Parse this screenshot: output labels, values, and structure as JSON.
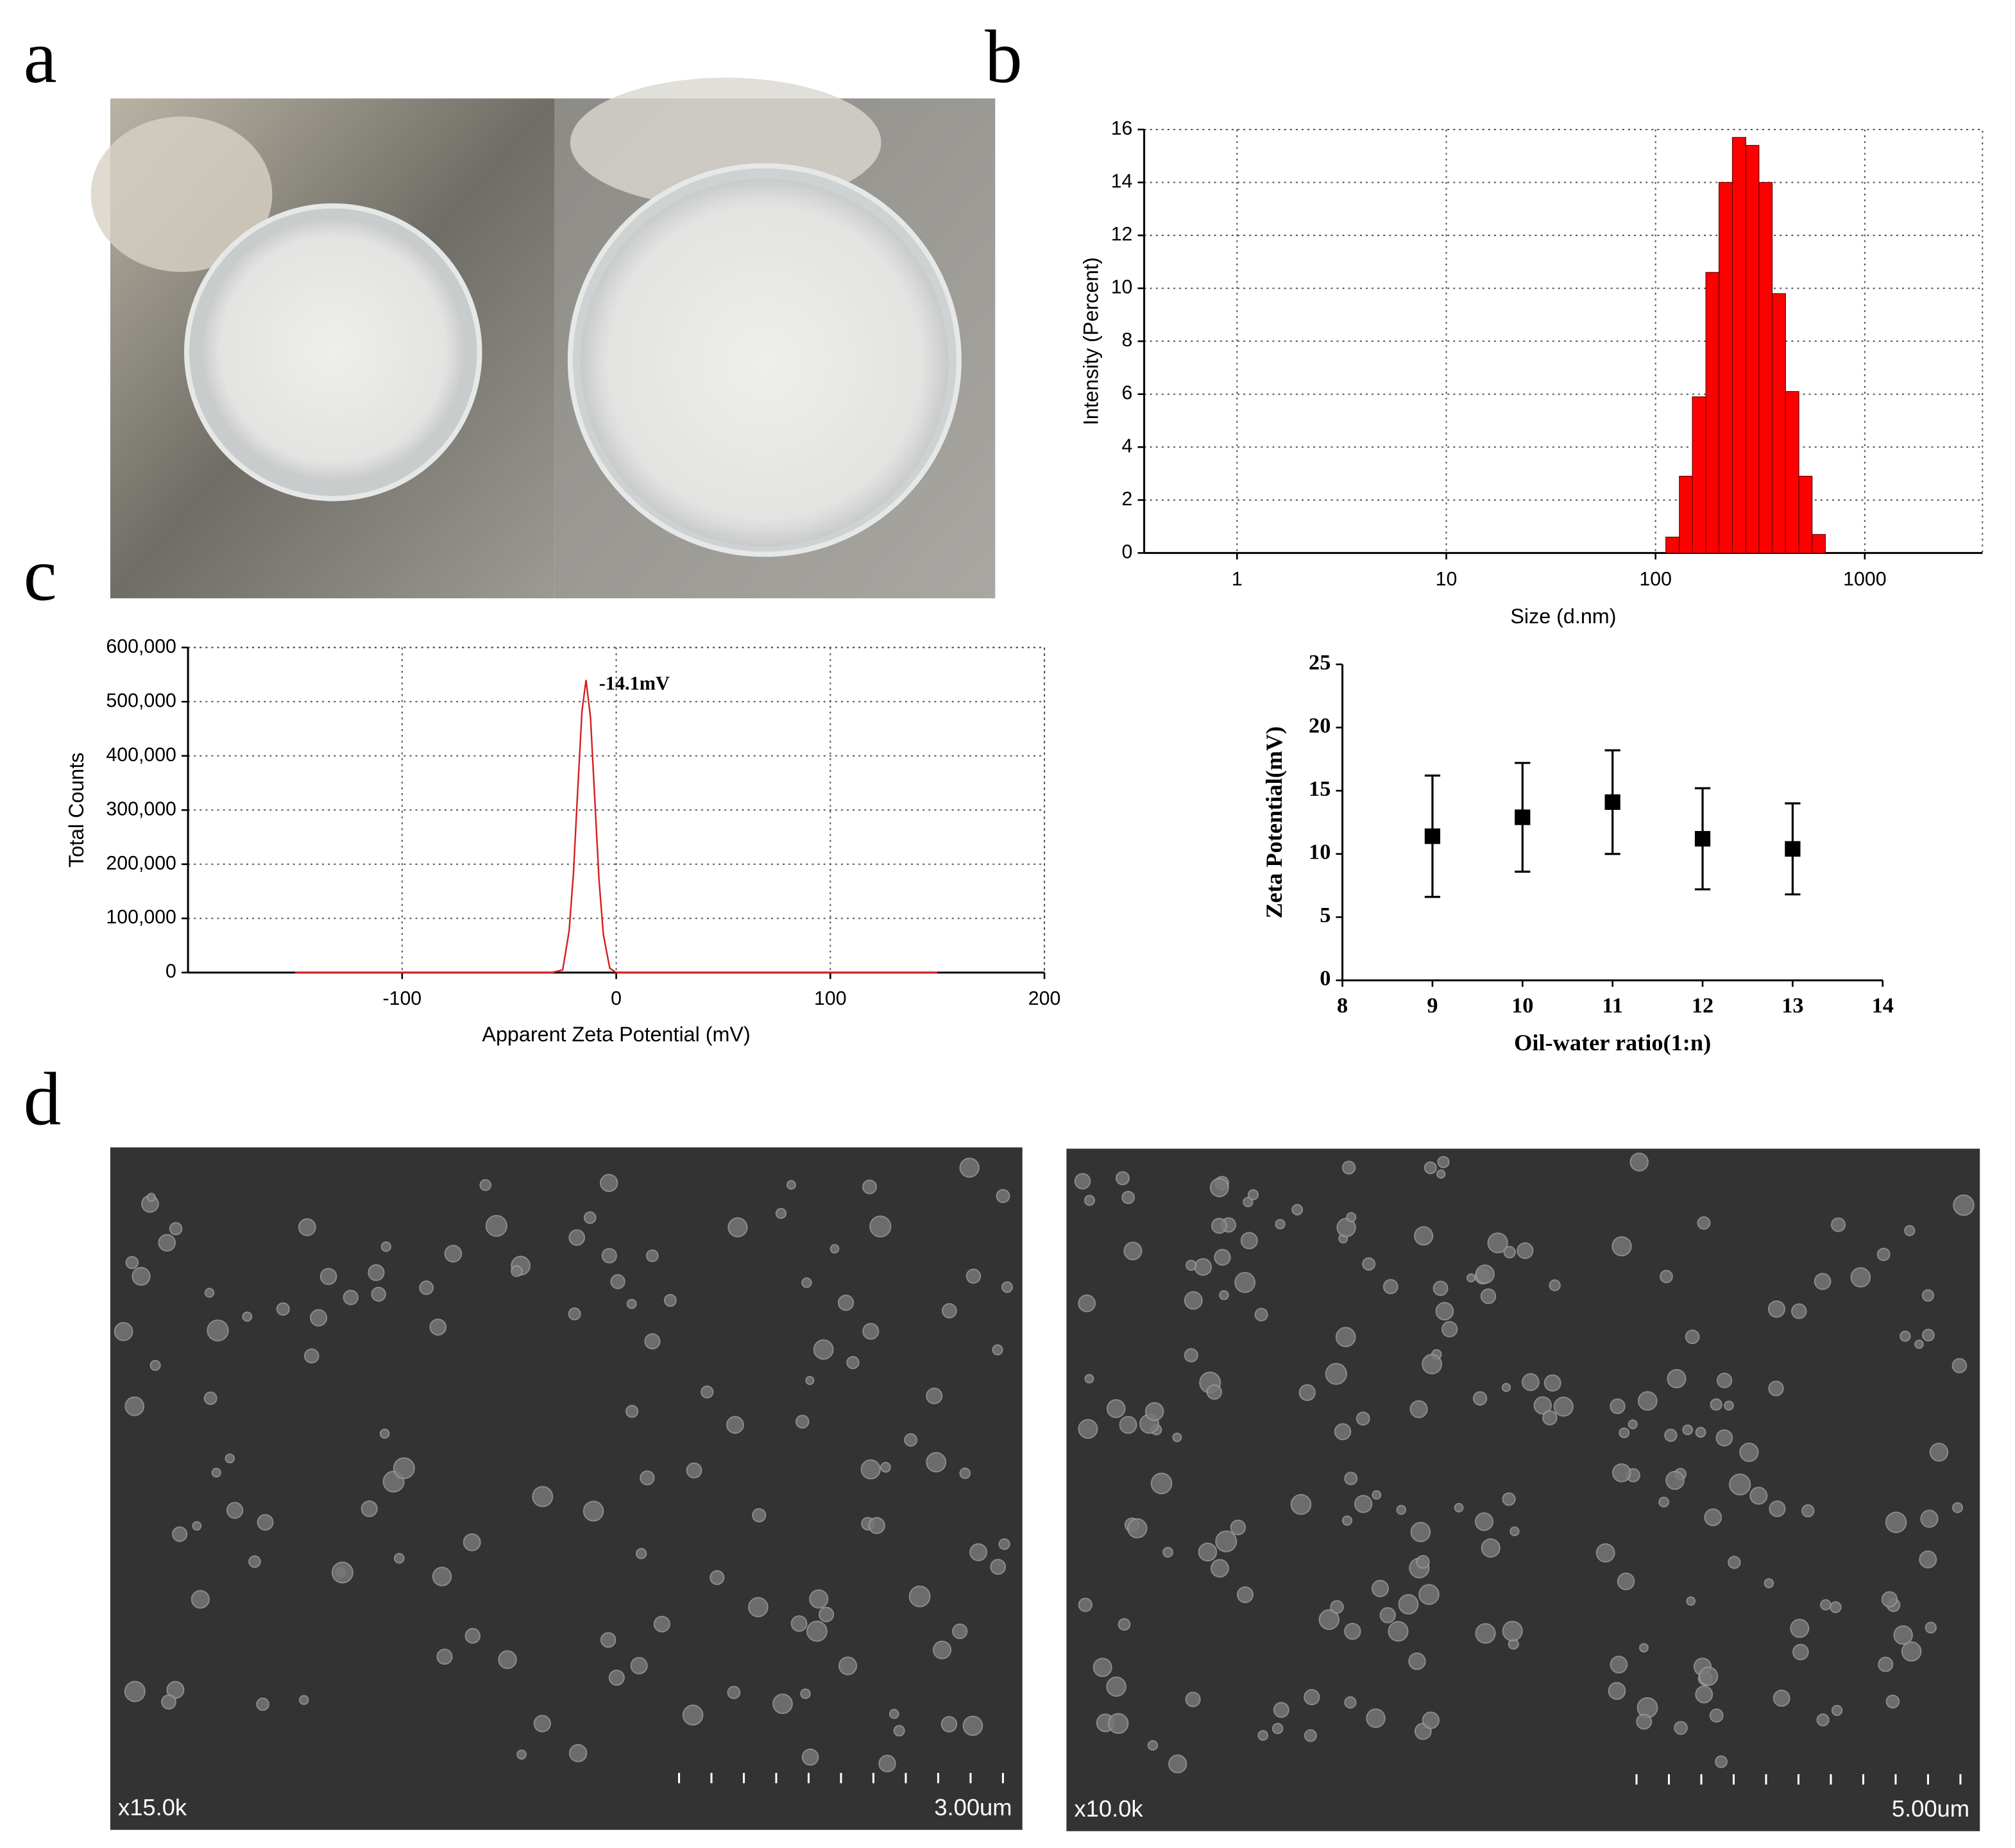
{
  "panels": [
    "a",
    "b",
    "c",
    "d"
  ],
  "chart_data": [
    {
      "type": "histogram",
      "bins": [
        112,
        130,
        150,
        174,
        201,
        233,
        270,
        312,
        361,
        418,
        484,
        560,
        648
      ],
      "values": [
        0.6,
        2.9,
        5.9,
        10.6,
        14.0,
        15.7,
        15.4,
        14.0,
        9.8,
        6.1,
        2.9,
        0.7
      ],
      "color": "#ff0000",
      "x_label": "Size (d.nm)",
      "y_label": "Intensity (Percent)",
      "xlim": [
        0.36,
        3650
      ],
      "xticks": [
        1,
        10,
        100,
        1000
      ],
      "x_log": true,
      "ylim": [
        0,
        16
      ],
      "yticks": [
        0,
        2,
        4,
        6,
        8,
        10,
        12,
        14,
        16
      ],
      "grid": true
    },
    {
      "type": "line",
      "x": [
        -150,
        -30,
        -25,
        -22,
        -20,
        -18,
        -16,
        -14.1,
        -12,
        -10,
        -8,
        -6,
        -3,
        0,
        150
      ],
      "values": [
        0,
        0,
        5000,
        77000,
        182000,
        335000,
        482000,
        540000,
        470000,
        319000,
        169000,
        70000,
        8000,
        0,
        0
      ],
      "color": "#d62020",
      "annotation": "-14.1mV",
      "x_label": "Apparent Zeta Potential (mV)",
      "y_label": "Total Counts",
      "xlim": [
        -200,
        200
      ],
      "xticks": [
        -100,
        0,
        100,
        200
      ],
      "ylim": [
        0,
        600000
      ],
      "yticks": [
        0,
        {
          "value": 100000,
          "label": "100,000"
        },
        {
          "value": 200000,
          "label": "200,000"
        },
        {
          "value": 300000,
          "label": "300,000"
        },
        {
          "value": 400000,
          "label": "400,000"
        },
        {
          "value": 500000,
          "label": "500,000"
        },
        {
          "value": 600000,
          "label": "600,000"
        }
      ],
      "grid": true
    },
    {
      "type": "scatter",
      "x": [
        9,
        10,
        11,
        12,
        13
      ],
      "values": [
        11.4,
        12.9,
        14.1,
        11.2,
        10.4
      ],
      "errors": [
        4.8,
        4.3,
        4.1,
        4.0,
        3.6
      ],
      "color": "#000000",
      "x_label": "Oil-water ratio(1:n)",
      "y_label": "Zeta Potential(mV)",
      "xlim": [
        8,
        14
      ],
      "xticks": [
        8,
        9,
        10,
        11,
        12,
        13,
        14
      ],
      "ylim": [
        0,
        25
      ],
      "yticks": [
        0,
        5,
        10,
        15,
        20,
        25
      ],
      "grid": false
    }
  ],
  "images": [
    {
      "magnification": "x15.0k",
      "scale_bar": "3.00um"
    },
    {
      "magnification": "x10.0k",
      "scale_bar": "5.00um"
    }
  ]
}
